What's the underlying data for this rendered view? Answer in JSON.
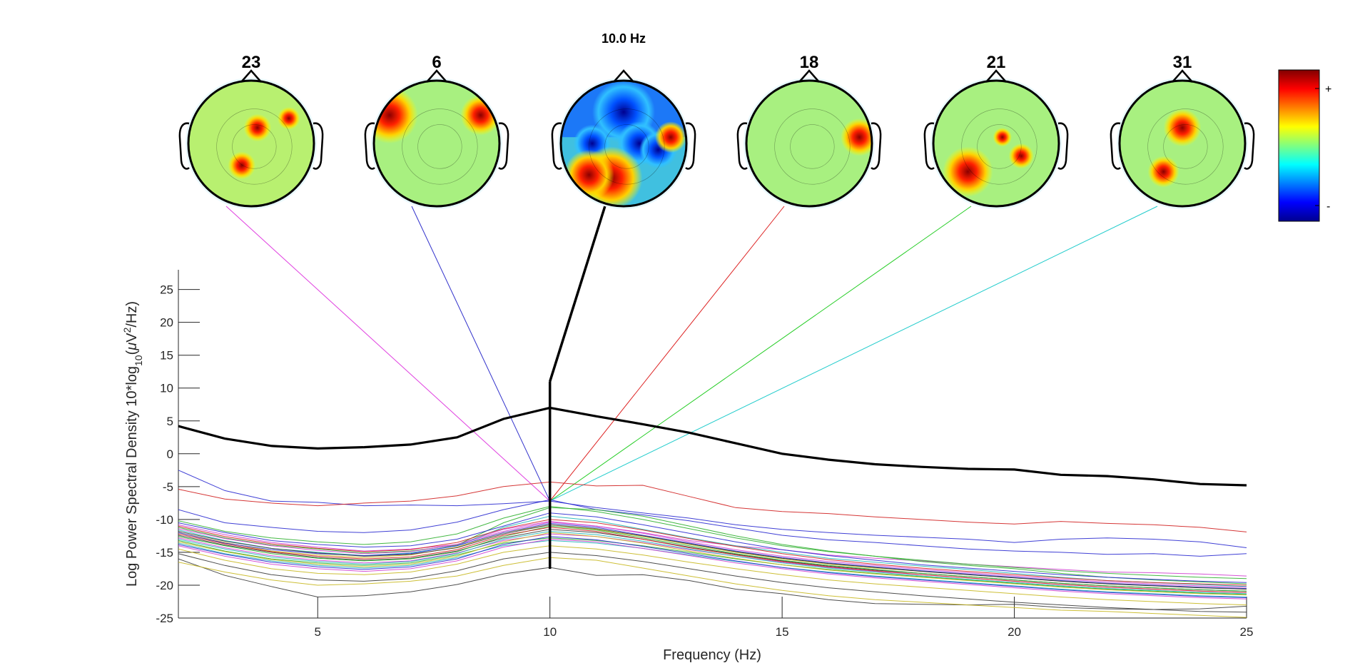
{
  "chart_data": {
    "type": "line",
    "xlabel": "Frequency (Hz)",
    "ylabel": {
      "prefix": "Log Power Spectral Density 10*log",
      "sub": "10",
      "middle": "(",
      "mu": "μ",
      "unit_a": "V",
      "sup": "2",
      "unit_b": "/Hz)"
    },
    "xlim": [
      2,
      25
    ],
    "ylim": [
      -25,
      28
    ],
    "xticks": [
      5,
      10,
      15,
      20,
      25
    ],
    "yticks": [
      25,
      20,
      15,
      10,
      5,
      0,
      -5,
      -10,
      -15,
      -20,
      -25
    ],
    "selected_frequency": 10,
    "selected_frequency_label": "10.0 Hz",
    "x": [
      2,
      3,
      4,
      5,
      6,
      7,
      8,
      9,
      10,
      11,
      12,
      13,
      14,
      15,
      16,
      17,
      18,
      19,
      20,
      21,
      22,
      23,
      24,
      25
    ],
    "mean_spectrum": [
      4.2,
      2.3,
      1.2,
      0.8,
      1.0,
      1.4,
      2.5,
      5.3,
      7.0,
      5.7,
      4.5,
      3.2,
      1.6,
      0.0,
      -0.9,
      -1.6,
      -2.0,
      -2.3,
      -2.4,
      -3.2,
      -3.4,
      -3.9,
      -4.6,
      -4.8
    ],
    "channel_spectra": [
      {
        "color": "#2a2ad0",
        "values": [
          -2.5,
          -5.6,
          -7.2,
          -7.4,
          -7.9,
          -7.8,
          -7.9,
          -7.6,
          -7.2,
          -8.2,
          -9.0,
          -9.8,
          -10.8,
          -11.5,
          -12.0,
          -12.4,
          -12.7,
          -13.0,
          -13.5,
          -13.0,
          -12.8,
          -13.0,
          -13.4,
          -14.3
        ]
      },
      {
        "color": "#d02020",
        "values": [
          -5.4,
          -6.9,
          -7.5,
          -7.9,
          -7.5,
          -7.2,
          -6.4,
          -5.0,
          -4.3,
          -4.9,
          -4.8,
          -6.5,
          -8.2,
          -8.8,
          -9.1,
          -9.6,
          -10.0,
          -10.4,
          -10.7,
          -10.3,
          -10.6,
          -10.8,
          -11.2,
          -11.9
        ]
      },
      {
        "color": "#2a2ad0",
        "values": [
          -8.5,
          -10.5,
          -11.2,
          -11.8,
          -12.0,
          -11.6,
          -10.4,
          -8.5,
          -7.0,
          -8.5,
          -9.3,
          -10.2,
          -11.3,
          -12.4,
          -13.1,
          -13.5,
          -14.0,
          -14.5,
          -14.8,
          -15.0,
          -15.3,
          -15.2,
          -15.6,
          -15.2
        ]
      },
      {
        "color": "#d040d0",
        "values": [
          -10.8,
          -12.3,
          -13.5,
          -14.2,
          -14.8,
          -14.5,
          -13.8,
          -11.5,
          -10.3,
          -11.0,
          -12.0,
          -13.2,
          -14.0,
          -14.6,
          -15.4,
          -15.9,
          -16.3,
          -16.8,
          -17.2,
          -17.6,
          -18.0,
          -18.1,
          -18.3,
          -18.6
        ]
      },
      {
        "color": "#2fb02f",
        "values": [
          -11.2,
          -12.8,
          -13.9,
          -14.5,
          -15.1,
          -14.8,
          -13.9,
          -10.5,
          -8.2,
          -8.5,
          -9.5,
          -11.0,
          -12.5,
          -13.8,
          -14.8,
          -15.6,
          -16.4,
          -17.0,
          -17.5,
          -18.2,
          -18.8,
          -19.2,
          -19.5,
          -19.8
        ]
      },
      {
        "color": "#22b8b8",
        "values": [
          -11.6,
          -13.2,
          -14.4,
          -15.0,
          -15.5,
          -15.1,
          -14.0,
          -11.2,
          -9.5,
          -10.2,
          -11.5,
          -12.8,
          -14.0,
          -15.0,
          -15.9,
          -16.5,
          -17.1,
          -17.6,
          -18.2,
          -18.8,
          -19.3,
          -19.6,
          -19.9,
          -20.2
        ]
      },
      {
        "color": "#c8b820",
        "values": [
          -12.0,
          -13.5,
          -14.8,
          -15.4,
          -15.8,
          -15.4,
          -14.2,
          -12.0,
          -10.8,
          -11.5,
          -12.6,
          -13.8,
          -15.0,
          -16.0,
          -16.8,
          -17.4,
          -17.9,
          -18.4,
          -18.9,
          -19.4,
          -19.8,
          -20.1,
          -20.4,
          -20.6
        ]
      },
      {
        "color": "#3a3a3a",
        "values": [
          -12.4,
          -13.9,
          -15.0,
          -15.8,
          -16.2,
          -15.9,
          -14.8,
          -12.8,
          -11.5,
          -12.0,
          -13.0,
          -14.2,
          -15.3,
          -16.3,
          -17.1,
          -17.7,
          -18.2,
          -18.7,
          -19.2,
          -19.7,
          -20.1,
          -20.4,
          -20.7,
          -20.9
        ]
      },
      {
        "color": "#2a2ad0",
        "values": [
          -10.5,
          -12.0,
          -13.2,
          -13.8,
          -14.2,
          -14.0,
          -13.0,
          -11.0,
          -9.0,
          -9.6,
          -10.8,
          -12.1,
          -13.4,
          -14.6,
          -15.5,
          -16.2,
          -16.9,
          -17.4,
          -17.9,
          -18.4,
          -18.8,
          -19.1,
          -19.4,
          -19.6
        ]
      },
      {
        "color": "#d02020",
        "values": [
          -11.0,
          -12.6,
          -13.7,
          -14.4,
          -14.9,
          -14.6,
          -13.5,
          -11.4,
          -10.0,
          -10.5,
          -11.6,
          -12.9,
          -14.1,
          -15.2,
          -16.1,
          -16.8,
          -17.4,
          -17.9,
          -18.4,
          -18.9,
          -19.3,
          -19.6,
          -19.8,
          -20.0
        ]
      },
      {
        "color": "#d040d0",
        "values": [
          -12.8,
          -14.3,
          -15.5,
          -16.2,
          -16.6,
          -16.3,
          -15.1,
          -13.2,
          -12.2,
          -12.6,
          -13.5,
          -14.6,
          -15.6,
          -16.5,
          -17.3,
          -17.9,
          -18.4,
          -18.9,
          -19.4,
          -19.9,
          -20.3,
          -20.6,
          -20.9,
          -21.1
        ]
      },
      {
        "color": "#2fb02f",
        "values": [
          -13.2,
          -14.8,
          -16.0,
          -16.6,
          -17.0,
          -16.6,
          -15.4,
          -13.6,
          -12.8,
          -13.2,
          -14.0,
          -15.0,
          -16.0,
          -16.9,
          -17.6,
          -18.2,
          -18.7,
          -19.2,
          -19.7,
          -20.2,
          -20.6,
          -20.9,
          -21.2,
          -21.4
        ]
      },
      {
        "color": "#22b8b8",
        "values": [
          -13.6,
          -15.2,
          -16.3,
          -17.0,
          -17.4,
          -17.0,
          -15.8,
          -14.0,
          -13.2,
          -13.6,
          -14.4,
          -15.4,
          -16.4,
          -17.3,
          -18.0,
          -18.6,
          -19.1,
          -19.6,
          -20.1,
          -20.6,
          -21.0,
          -21.3,
          -21.6,
          -21.8
        ]
      },
      {
        "color": "#c8b820",
        "values": [
          -14.5,
          -16.2,
          -17.5,
          -18.2,
          -18.4,
          -18.0,
          -16.8,
          -15.0,
          -14.0,
          -14.5,
          -15.4,
          -16.5,
          -17.5,
          -18.4,
          -19.2,
          -19.8,
          -20.3,
          -20.8,
          -21.3,
          -21.8,
          -22.2,
          -22.5,
          -22.8,
          -23.0
        ]
      },
      {
        "color": "#3a3a3a",
        "values": [
          -15.2,
          -17.0,
          -18.4,
          -19.2,
          -19.4,
          -19.0,
          -17.8,
          -16.0,
          -15.0,
          -15.5,
          -16.4,
          -17.5,
          -18.6,
          -19.6,
          -20.4,
          -21.0,
          -21.6,
          -22.1,
          -22.6,
          -23.0,
          -23.4,
          -23.7,
          -24.0,
          -24.1
        ]
      },
      {
        "color": "#3a3a3a",
        "values": [
          -16.0,
          -18.5,
          -20.2,
          -21.8,
          -21.6,
          -21.0,
          -19.9,
          -18.3,
          -17.3,
          -18.5,
          -18.4,
          -19.3,
          -20.6,
          -21.3,
          -22.2,
          -22.8,
          -22.9,
          -23.0,
          -22.9,
          -23.4,
          -23.6,
          -23.7,
          -23.6,
          -23.2
        ]
      },
      {
        "color": "#c8b820",
        "values": [
          -16.5,
          -18.0,
          -19.2,
          -20.0,
          -19.8,
          -19.4,
          -18.6,
          -17.0,
          -15.8,
          -16.2,
          -17.4,
          -18.6,
          -19.8,
          -20.8,
          -21.6,
          -22.2,
          -22.6,
          -23.0,
          -23.4,
          -23.8,
          -24.0,
          -24.3,
          -24.6,
          -24.9
        ]
      },
      {
        "color": "#2a2ad0",
        "values": [
          -12.0,
          -13.6,
          -14.6,
          -15.2,
          -15.5,
          -15.2,
          -14.0,
          -12.0,
          -10.6,
          -11.2,
          -12.4,
          -13.6,
          -14.8,
          -15.8,
          -16.6,
          -17.2,
          -17.8,
          -18.3,
          -18.8,
          -19.3,
          -19.7,
          -20.0,
          -20.3,
          -20.5
        ]
      },
      {
        "color": "#d040d0",
        "values": [
          -11.4,
          -12.9,
          -14.0,
          -14.7,
          -15.2,
          -14.9,
          -13.8,
          -11.8,
          -10.4,
          -11.0,
          -12.1,
          -13.4,
          -14.6,
          -15.6,
          -16.4,
          -17.0,
          -17.6,
          -18.1,
          -18.6,
          -19.1,
          -19.5,
          -19.8,
          -20.1,
          -20.3
        ]
      },
      {
        "color": "#2fb02f",
        "values": [
          -12.6,
          -14.0,
          -15.2,
          -15.9,
          -16.3,
          -16.0,
          -14.9,
          -12.6,
          -11.0,
          -11.6,
          -12.8,
          -14.0,
          -15.2,
          -16.2,
          -17.0,
          -17.6,
          -18.2,
          -18.7,
          -19.2,
          -19.7,
          -20.1,
          -20.4,
          -20.7,
          -20.9
        ]
      },
      {
        "color": "#22b8b8",
        "values": [
          -13.0,
          -14.5,
          -15.7,
          -16.4,
          -16.8,
          -16.4,
          -15.2,
          -13.0,
          -11.8,
          -12.3,
          -13.3,
          -14.5,
          -15.6,
          -16.6,
          -17.4,
          -18.0,
          -18.6,
          -19.1,
          -19.6,
          -20.1,
          -20.5,
          -20.8,
          -21.1,
          -21.3
        ]
      },
      {
        "color": "#d02020",
        "values": [
          -12.2,
          -13.7,
          -14.9,
          -15.6,
          -16.0,
          -15.7,
          -14.6,
          -12.4,
          -11.2,
          -11.8,
          -13.0,
          -14.3,
          -15.4,
          -16.4,
          -17.2,
          -17.8,
          -18.4,
          -18.9,
          -19.4,
          -19.9,
          -20.3,
          -20.6,
          -20.9,
          -21.1
        ]
      },
      {
        "color": "#3a3a3a",
        "values": [
          -11.8,
          -13.3,
          -14.4,
          -15.1,
          -15.6,
          -15.3,
          -14.3,
          -12.2,
          -10.8,
          -11.4,
          -12.5,
          -13.7,
          -14.9,
          -15.9,
          -16.7,
          -17.3,
          -17.9,
          -18.4,
          -18.9,
          -19.4,
          -19.8,
          -20.1,
          -20.4,
          -20.6
        ]
      },
      {
        "color": "#2a2ad0",
        "values": [
          -13.8,
          -15.3,
          -16.5,
          -17.2,
          -17.6,
          -17.2,
          -16.0,
          -13.8,
          -12.6,
          -13.1,
          -14.1,
          -15.2,
          -16.3,
          -17.3,
          -18.1,
          -18.7,
          -19.2,
          -19.7,
          -20.2,
          -20.7,
          -21.1,
          -21.4,
          -21.7,
          -21.9
        ]
      },
      {
        "color": "#c8b820",
        "values": [
          -13.4,
          -14.9,
          -16.1,
          -16.8,
          -17.2,
          -16.8,
          -15.6,
          -13.4,
          -12.0,
          -12.6,
          -13.6,
          -14.8,
          -15.9,
          -16.9,
          -17.7,
          -18.3,
          -18.8,
          -19.3,
          -19.8,
          -20.3,
          -20.7,
          -21.0,
          -21.3,
          -21.5
        ]
      },
      {
        "color": "#2fb02f",
        "values": [
          -10.2,
          -11.8,
          -12.8,
          -13.4,
          -13.8,
          -13.4,
          -12.2,
          -9.8,
          -8.0,
          -8.8,
          -10.0,
          -11.4,
          -12.8,
          -14.0,
          -14.9,
          -15.6,
          -16.2,
          -16.8,
          -17.3,
          -17.8,
          -18.2,
          -18.5,
          -18.8,
          -19.0
        ]
      },
      {
        "color": "#d040d0",
        "values": [
          -14.0,
          -15.6,
          -16.8,
          -17.5,
          -17.9,
          -17.5,
          -16.3,
          -14.2,
          -13.0,
          -13.4,
          -14.4,
          -15.5,
          -16.6,
          -17.5,
          -18.3,
          -18.9,
          -19.4,
          -19.9,
          -20.4,
          -20.9,
          -21.3,
          -21.6,
          -21.9,
          -22.1
        ]
      }
    ]
  },
  "topoplots": [
    {
      "label": "23",
      "x_hz": 3.5,
      "line_color": "#e040e0"
    },
    {
      "label": "6",
      "x_hz": 7.7,
      "line_color": "#3333cc"
    },
    {
      "label": "",
      "x_hz": 11.5,
      "line_color": "#000000",
      "is_mean": true
    },
    {
      "label": "18",
      "x_hz": 15.7,
      "line_color": "#dd2222"
    },
    {
      "label": "21",
      "x_hz": 19.7,
      "line_color": "#22cc22"
    },
    {
      "label": "31",
      "x_hz": 23.7,
      "line_color": "#22cccc"
    }
  ],
  "colorbar": {
    "plus_label": "+",
    "minus_label": "-"
  }
}
